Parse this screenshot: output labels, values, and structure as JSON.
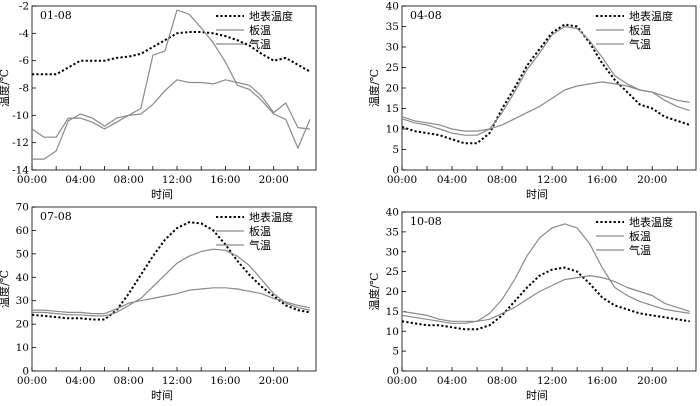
{
  "chart_data": [
    {
      "type": "line",
      "panel_label": "01-08",
      "xlabel": "时间",
      "ylabel": "温度/℃",
      "x_tick_labels": [
        "00:00",
        "04:00",
        "08:00",
        "12:00",
        "16:00",
        "20:00"
      ],
      "x_ticks": [
        0,
        4,
        8,
        12,
        16,
        20
      ],
      "xlim": [
        0,
        23.5
      ],
      "ylim": [
        -14,
        -2
      ],
      "y_ticks": [
        -14,
        -12,
        -10,
        -8,
        -6,
        -4,
        -2
      ],
      "y_tick_labels": [
        "-14",
        "-12",
        "-10",
        "-8",
        "-6",
        "-4",
        "-2"
      ],
      "legend_position": "top-right",
      "x": [
        0,
        1,
        2,
        3,
        4,
        5,
        6,
        7,
        8,
        9,
        10,
        11,
        12,
        13,
        14,
        15,
        16,
        17,
        18,
        19,
        20,
        21,
        22,
        23
      ],
      "series": [
        {
          "name": "地表温度",
          "style": "dotted",
          "values": [
            -7.0,
            -7.0,
            -7.0,
            -6.5,
            -6.0,
            -6.0,
            -6.0,
            -5.8,
            -5.7,
            -5.5,
            -5.0,
            -4.5,
            -4.0,
            -3.9,
            -3.9,
            -4.0,
            -4.2,
            -4.5,
            -4.9,
            -5.5,
            -6.0,
            -5.8,
            -6.3,
            -6.8
          ]
        },
        {
          "name": "板温",
          "style": "solid",
          "values": [
            -11.0,
            -11.6,
            -11.6,
            -10.2,
            -10.2,
            -10.5,
            -11.0,
            -10.5,
            -10.0,
            -9.9,
            -9.2,
            -8.2,
            -7.4,
            -7.6,
            -7.6,
            -7.7,
            -7.4,
            -7.6,
            -7.8,
            -8.6,
            -9.8,
            -9.1,
            -10.9,
            -11.0
          ]
        },
        {
          "name": "气温",
          "style": "solid",
          "values": [
            -13.2,
            -13.2,
            -12.6,
            -10.4,
            -9.9,
            -10.2,
            -10.8,
            -10.2,
            -10.0,
            -9.5,
            -5.6,
            -5.3,
            -2.3,
            -2.6,
            -3.6,
            -4.7,
            -6.1,
            -7.8,
            -8.1,
            -8.9,
            -9.9,
            -10.3,
            -12.4,
            -10.3
          ]
        }
      ]
    },
    {
      "type": "line",
      "panel_label": "04-08",
      "xlabel": "时间",
      "ylabel": "温度/℃",
      "x_tick_labels": [
        "00:00",
        "04:00",
        "08:00",
        "12:00",
        "16:00",
        "20:00"
      ],
      "x_ticks": [
        0,
        4,
        8,
        12,
        16,
        20
      ],
      "xlim": [
        0,
        23.5
      ],
      "ylim": [
        0,
        40
      ],
      "y_ticks": [
        0,
        5,
        10,
        15,
        20,
        25,
        30,
        35,
        40
      ],
      "y_tick_labels": [
        "0",
        "5",
        "10",
        "15",
        "20",
        "25",
        "30",
        "35",
        "40"
      ],
      "legend_position": "top-right",
      "x": [
        0,
        1,
        2,
        3,
        4,
        5,
        6,
        7,
        8,
        9,
        10,
        11,
        12,
        13,
        14,
        15,
        16,
        17,
        18,
        19,
        20,
        21,
        22,
        23
      ],
      "series": [
        {
          "name": "地表温度",
          "style": "dotted",
          "values": [
            10.5,
            9.5,
            9.0,
            8.5,
            7.5,
            6.5,
            6.5,
            9.0,
            15.0,
            20.0,
            25.5,
            29.5,
            33.5,
            35.5,
            35.0,
            31.0,
            26.0,
            22.0,
            19.0,
            16.0,
            15.0,
            13.0,
            12.0,
            11.0
          ]
        },
        {
          "name": "板温",
          "style": "solid",
          "values": [
            13.0,
            12.0,
            11.5,
            11.0,
            10.0,
            9.5,
            9.5,
            10.0,
            11.0,
            12.5,
            14.0,
            15.5,
            17.5,
            19.5,
            20.5,
            21.0,
            21.5,
            21.0,
            20.5,
            19.5,
            19.0,
            18.0,
            17.0,
            16.5
          ]
        },
        {
          "name": "气温",
          "style": "solid",
          "values": [
            12.5,
            11.5,
            11.0,
            10.0,
            9.0,
            8.5,
            8.5,
            10.0,
            14.0,
            19.0,
            24.5,
            28.5,
            33.0,
            35.0,
            34.5,
            31.5,
            27.5,
            23.0,
            21.0,
            19.5,
            19.0,
            17.0,
            15.5,
            14.5
          ]
        }
      ]
    },
    {
      "type": "line",
      "panel_label": "07-08",
      "xlabel": "时间",
      "ylabel": "温度/℃",
      "x_tick_labels": [
        "00:00",
        "04:00",
        "08:00",
        "12:00",
        "16:00",
        "20:00"
      ],
      "x_ticks": [
        0,
        4,
        8,
        12,
        16,
        20
      ],
      "xlim": [
        0,
        23.5
      ],
      "ylim": [
        0,
        70
      ],
      "y_ticks": [
        0,
        10,
        20,
        30,
        40,
        50,
        60,
        70
      ],
      "y_tick_labels": [
        "0",
        "10",
        "20",
        "30",
        "40",
        "50",
        "60",
        "70"
      ],
      "legend_position": "top-right",
      "x": [
        0,
        1,
        2,
        3,
        4,
        5,
        6,
        7,
        8,
        9,
        10,
        11,
        12,
        13,
        14,
        15,
        16,
        17,
        18,
        19,
        20,
        21,
        22,
        23
      ],
      "series": [
        {
          "name": "地表温度",
          "style": "dotted",
          "values": [
            24.0,
            23.5,
            23.0,
            22.5,
            22.5,
            22.0,
            22.0,
            26.0,
            33.0,
            41.0,
            49.0,
            56.0,
            61.0,
            63.5,
            63.0,
            60.0,
            54.0,
            47.0,
            41.0,
            36.0,
            32.0,
            28.0,
            26.0,
            25.0
          ]
        },
        {
          "name": "板温",
          "style": "solid",
          "values": [
            25.0,
            25.0,
            24.5,
            24.0,
            24.0,
            23.5,
            23.5,
            25.0,
            28.0,
            31.0,
            36.0,
            41.0,
            46.0,
            49.0,
            51.0,
            52.0,
            51.5,
            49.0,
            45.0,
            39.0,
            33.0,
            29.0,
            27.0,
            26.0
          ]
        },
        {
          "name": "气温",
          "style": "solid",
          "values": [
            26.0,
            26.0,
            25.5,
            25.0,
            25.0,
            24.5,
            24.5,
            26.5,
            29.0,
            30.0,
            31.0,
            32.0,
            33.0,
            34.5,
            35.0,
            35.5,
            35.5,
            35.0,
            34.0,
            33.0,
            31.0,
            29.5,
            28.0,
            27.0
          ]
        }
      ]
    },
    {
      "type": "line",
      "panel_label": "10-08",
      "xlabel": "时间",
      "ylabel": "温度/℃",
      "x_tick_labels": [
        "00:00",
        "04:00",
        "08:00",
        "12:00",
        "16:00",
        "20:00"
      ],
      "x_ticks": [
        0,
        4,
        8,
        12,
        16,
        20
      ],
      "xlim": [
        0,
        23.5
      ],
      "ylim": [
        0,
        40
      ],
      "y_ticks": [
        0,
        5,
        10,
        15,
        20,
        25,
        30,
        35,
        40
      ],
      "y_tick_labels": [
        "0",
        "5",
        "10",
        "15",
        "20",
        "25",
        "30",
        "35",
        "40"
      ],
      "legend_position": "top-right",
      "x": [
        0,
        1,
        2,
        3,
        4,
        5,
        6,
        7,
        8,
        9,
        10,
        11,
        12,
        13,
        14,
        15,
        16,
        17,
        18,
        19,
        20,
        21,
        22,
        23
      ],
      "series": [
        {
          "name": "地表温度",
          "style": "dotted",
          "values": [
            12.5,
            12.0,
            11.5,
            11.5,
            11.0,
            10.5,
            10.5,
            11.5,
            14.0,
            17.5,
            21.0,
            24.0,
            25.5,
            26.0,
            25.0,
            22.0,
            18.5,
            16.5,
            15.5,
            14.5,
            14.0,
            13.5,
            13.0,
            12.5
          ]
        },
        {
          "name": "板温",
          "style": "solid",
          "values": [
            15.0,
            14.5,
            14.0,
            13.0,
            12.5,
            12.5,
            12.5,
            13.0,
            14.5,
            16.0,
            18.0,
            20.0,
            21.5,
            23.0,
            23.5,
            24.0,
            23.5,
            22.5,
            21.0,
            20.0,
            19.0,
            17.0,
            16.0,
            15.0
          ]
        },
        {
          "name": "气温",
          "style": "solid",
          "values": [
            14.0,
            13.5,
            13.0,
            12.5,
            12.0,
            12.0,
            12.5,
            14.5,
            18.0,
            23.0,
            29.0,
            33.5,
            36.0,
            37.0,
            36.0,
            32.0,
            26.0,
            21.0,
            19.0,
            17.5,
            16.5,
            15.5,
            15.0,
            14.5
          ]
        }
      ]
    }
  ]
}
